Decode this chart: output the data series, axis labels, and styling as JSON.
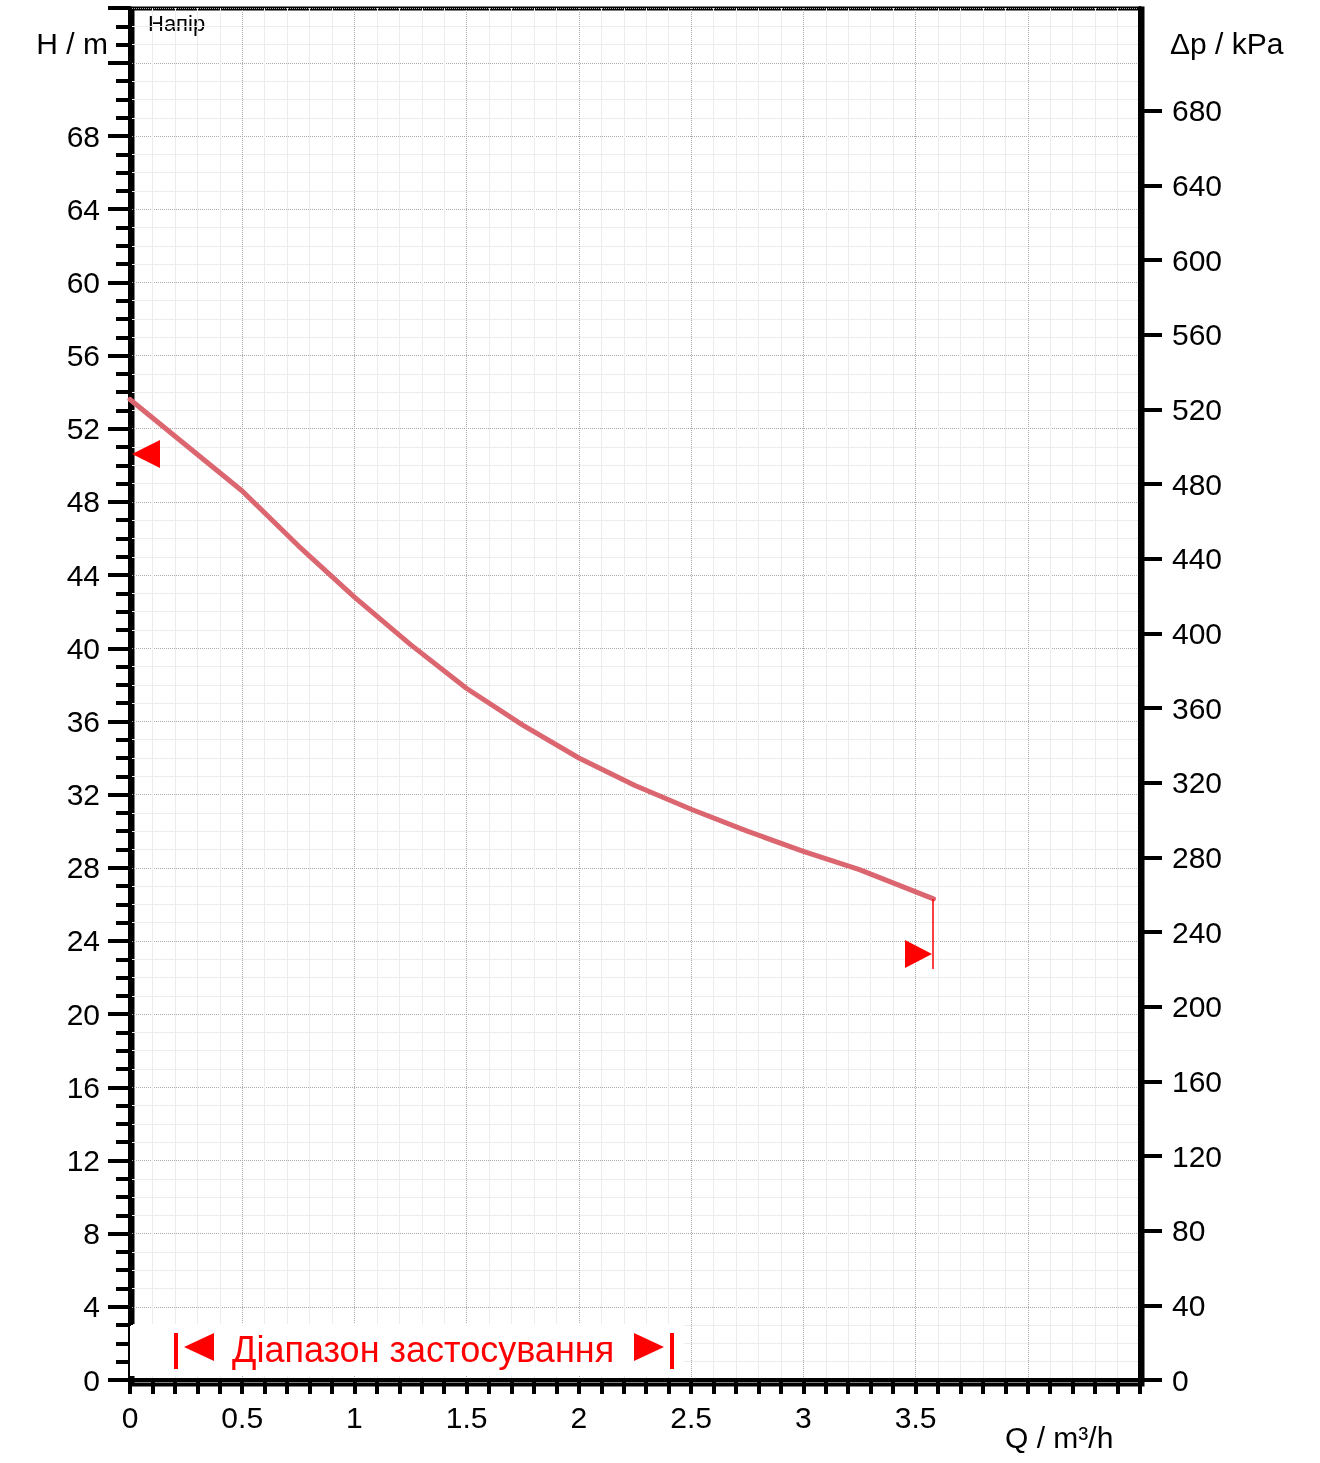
{
  "chart_data": {
    "type": "line",
    "xlabel": "Q / m³/h",
    "ylabel": "H / m",
    "y2label": "Δp / kPa",
    "annotations": [
      "Напір",
      "Діапазон застосування"
    ],
    "x": [
      0,
      0.25,
      0.5,
      0.75,
      1,
      1.25,
      1.5,
      1.75,
      2,
      2.25,
      2.5,
      2.75,
      3,
      3.25,
      3.58
    ],
    "series": [
      {
        "color": "#dc6670",
        "values": [
          53.6,
          51.1,
          48.6,
          45.6,
          42.8,
          40.2,
          37.8,
          35.8,
          34.0,
          32.5,
          31.2,
          30.0,
          28.9,
          27.9,
          26.3
        ]
      }
    ],
    "xlim": [
      0,
      4.5
    ],
    "xticks": [
      0,
      0.5,
      1,
      1.5,
      2,
      2.5,
      3,
      3.5
    ],
    "ylim": [
      0,
      75
    ],
    "yticks": [
      0,
      4,
      8,
      12,
      16,
      20,
      24,
      28,
      32,
      36,
      40,
      44,
      48,
      52,
      56,
      60,
      64,
      68
    ],
    "y2lim": [
      0,
      735
    ],
    "y2ticks": [
      0,
      40,
      80,
      120,
      160,
      200,
      240,
      280,
      320,
      360,
      400,
      440,
      480,
      520,
      560,
      600,
      640,
      680
    ],
    "grid": true,
    "marker": "none",
    "line_style": "solid"
  }
}
